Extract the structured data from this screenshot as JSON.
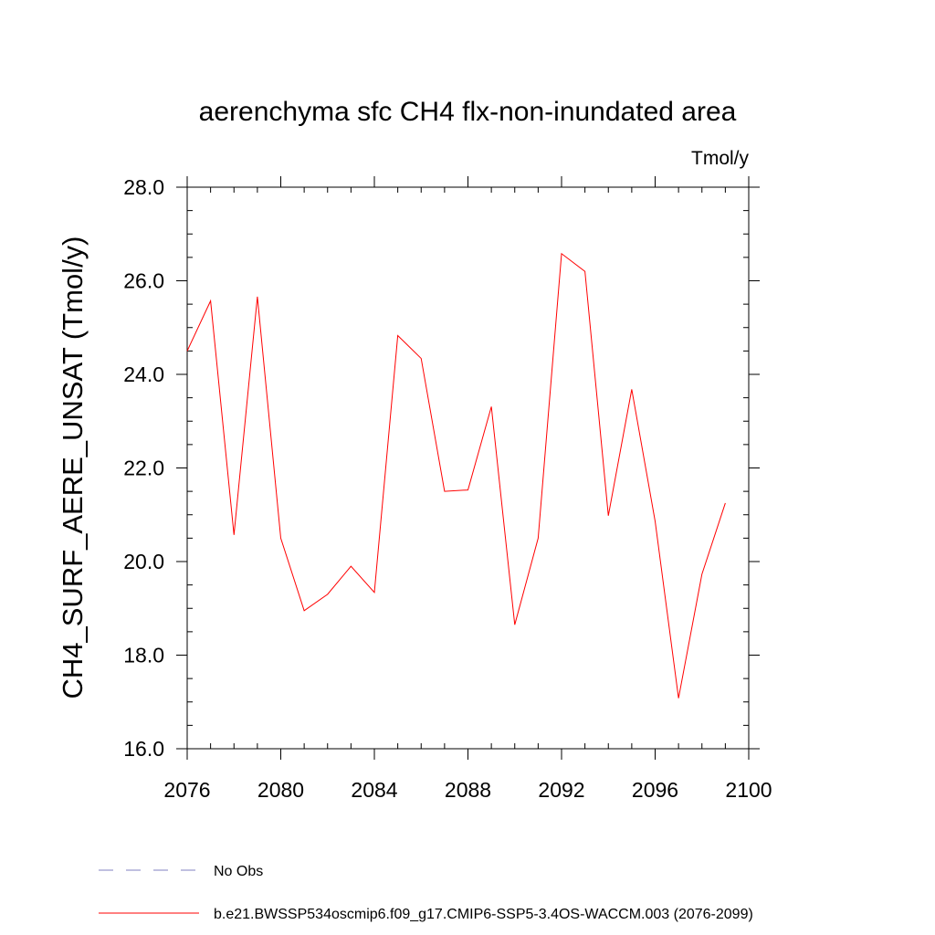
{
  "chart_data": {
    "type": "line",
    "title": "aerenchyma sfc CH4 flx-non-inundated area",
    "units_label": "Tmol/y",
    "ylabel": "CH4_SURF_AERE_UNSAT  (Tmol/y)",
    "xlabel": "",
    "xlim": [
      2076,
      2100
    ],
    "ylim": [
      16.0,
      28.0
    ],
    "x_ticks": [
      2076,
      2080,
      2084,
      2088,
      2092,
      2096,
      2100
    ],
    "x_tick_labels": [
      "2076",
      "2080",
      "2084",
      "2088",
      "2092",
      "2096",
      "2100"
    ],
    "y_ticks": [
      16.0,
      18.0,
      20.0,
      22.0,
      24.0,
      26.0,
      28.0
    ],
    "y_tick_labels": [
      "16.0",
      "18.0",
      "20.0",
      "22.0",
      "24.0",
      "26.0",
      "28.0"
    ],
    "x_minor_step": 1,
    "y_minor_step": 0.5,
    "grid": false,
    "legend_position": "bottom",
    "series": [
      {
        "name": "b.e21.BWSSP534oscmip6.f09_g17.CMIP6-SSP5-3.4OS-WACCM.003 (2076-2099)",
        "color": "#ff0000",
        "style": "solid",
        "x": [
          2076,
          2077,
          2078,
          2079,
          2080,
          2081,
          2082,
          2083,
          2084,
          2085,
          2086,
          2087,
          2088,
          2089,
          2090,
          2091,
          2092,
          2093,
          2094,
          2095,
          2096,
          2097,
          2098,
          2099
        ],
        "values": [
          24.5,
          25.57,
          20.57,
          25.66,
          20.5,
          18.95,
          19.3,
          19.9,
          19.34,
          24.83,
          24.34,
          21.5,
          21.53,
          23.31,
          18.65,
          20.5,
          26.58,
          26.2,
          20.98,
          23.68,
          20.86,
          17.08,
          19.73,
          21.25
        ]
      }
    ],
    "legend": [
      {
        "label": "No Obs",
        "color": "#8080c0",
        "style": "dashed"
      },
      {
        "label": "b.e21.BWSSP534oscmip6.f09_g17.CMIP6-SSP5-3.4OS-WACCM.003 (2076-2099)",
        "color": "#ff0000",
        "style": "solid"
      }
    ]
  }
}
